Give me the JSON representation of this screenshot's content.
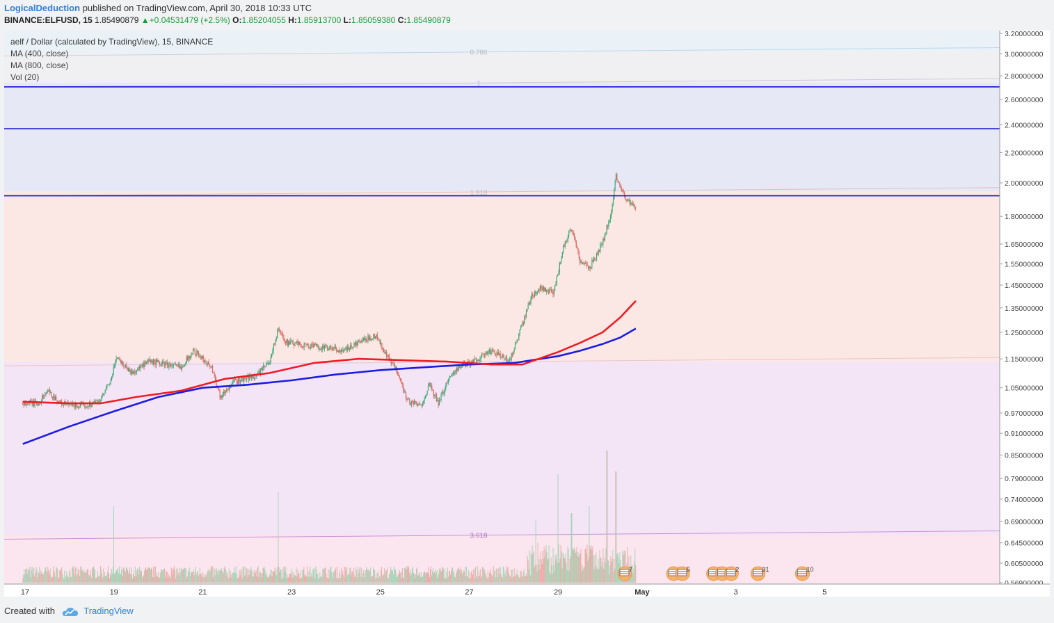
{
  "header": {
    "author": "LogicalDeduction",
    "published": "published on TradingView.com, April 30, 2018 10:33 UTC",
    "symbol": "BINANCE:ELFUSD, 15",
    "last": "1.85490879",
    "change": "+0.04531479 (+2.5%)",
    "o_label": "O:",
    "o": "1.85204055",
    "h_label": "H:",
    "h": "1.85913700",
    "l_label": "L:",
    "l": "1.85059380",
    "c_label": "C:",
    "c": "1.85490879"
  },
  "legend": {
    "title": "aelf / Dollar (calculated by TradingView), 15, BINANCE",
    "ma400": "MA (400, close)",
    "ma800": "MA (800, close)",
    "vol": "Vol (20)"
  },
  "footer": {
    "created": "Created with",
    "brand": "TradingView"
  },
  "colors": {
    "candle_up": "#3fa776",
    "candle_down": "#e0655e",
    "ma400": "#ee1c24",
    "ma800": "#1c1ce0",
    "hline": "#1212d8",
    "fib_top_fill": "#f0f0f2",
    "fib_blue_fill": "#e6e8f6",
    "fib_salmon_fill": "#fbe7e4",
    "fib_lavender_fill": "#f3e5f6",
    "fib_pink_fill": "#fbe5ee"
  },
  "chart_data": {
    "type": "candlestick",
    "y_scale": "log",
    "ylim": [
      0.55,
      3.3
    ],
    "x_tick_labels": [
      "17",
      "19",
      "21",
      "23",
      "25",
      "27",
      "29",
      "May",
      "3",
      "5"
    ],
    "y_tick_labels": [
      "3.20000000",
      "3.00000000",
      "2.80000000",
      "2.60000000",
      "2.40000000",
      "2.20000000",
      "2.00000000",
      "1.80000000",
      "1.65000000",
      "1.55000000",
      "1.45000000",
      "1.35000000",
      "1.25000000",
      "1.15000000",
      "1.05000000",
      "0.97000000",
      "0.91000000",
      "0.85000000",
      "0.79000000",
      "0.74000000",
      "0.69000000",
      "0.64500000",
      "0.60500000",
      "0.56900000"
    ],
    "y_ticks": [
      3.2,
      3.0,
      2.8,
      2.6,
      2.4,
      2.2,
      2.0,
      1.8,
      1.65,
      1.55,
      1.45,
      1.35,
      1.25,
      1.15,
      1.05,
      0.97,
      0.91,
      0.85,
      0.79,
      0.74,
      0.69,
      0.645,
      0.605,
      0.569
    ],
    "horizontal_lines": [
      {
        "value": 2.70437461,
        "label": "2.70437461"
      },
      {
        "value": 2.37083294,
        "label": "2.37083294"
      },
      {
        "value": 1.92062842,
        "label": "1.92062842"
      }
    ],
    "last_price": {
      "value": 1.85490879,
      "label": "1.85490879"
    },
    "fib_levels": [
      {
        "level": "0.786",
        "value": 3.02
      },
      {
        "level": "1",
        "value": 2.74
      },
      {
        "level": "1.618",
        "value": 1.945
      },
      {
        "level": "",
        "value": 1.14
      },
      {
        "level": "3.618",
        "value": 0.661
      }
    ],
    "price_path": [
      {
        "day": 16.95,
        "price": 1.0
      },
      {
        "day": 17.3,
        "price": 1.0
      },
      {
        "day": 17.5,
        "price": 1.04
      },
      {
        "day": 17.8,
        "price": 1.0
      },
      {
        "day": 18.3,
        "price": 0.99
      },
      {
        "day": 18.7,
        "price": 1.01
      },
      {
        "day": 18.95,
        "price": 1.08
      },
      {
        "day": 19.05,
        "price": 1.16
      },
      {
        "day": 19.4,
        "price": 1.1
      },
      {
        "day": 19.8,
        "price": 1.14
      },
      {
        "day": 20.2,
        "price": 1.13
      },
      {
        "day": 20.5,
        "price": 1.12
      },
      {
        "day": 20.8,
        "price": 1.18
      },
      {
        "day": 21.2,
        "price": 1.12
      },
      {
        "day": 21.4,
        "price": 1.02
      },
      {
        "day": 21.7,
        "price": 1.07
      },
      {
        "day": 22.2,
        "price": 1.09
      },
      {
        "day": 22.5,
        "price": 1.14
      },
      {
        "day": 22.7,
        "price": 1.26
      },
      {
        "day": 22.9,
        "price": 1.21
      },
      {
        "day": 23.3,
        "price": 1.2
      },
      {
        "day": 23.8,
        "price": 1.19
      },
      {
        "day": 24.2,
        "price": 1.18
      },
      {
        "day": 24.5,
        "price": 1.21
      },
      {
        "day": 24.9,
        "price": 1.24
      },
      {
        "day": 25.1,
        "price": 1.17
      },
      {
        "day": 25.4,
        "price": 1.1
      },
      {
        "day": 25.6,
        "price": 1.01
      },
      {
        "day": 25.9,
        "price": 0.99
      },
      {
        "day": 26.1,
        "price": 1.06
      },
      {
        "day": 26.3,
        "price": 1.0
      },
      {
        "day": 26.6,
        "price": 1.1
      },
      {
        "day": 26.9,
        "price": 1.13
      },
      {
        "day": 27.2,
        "price": 1.15
      },
      {
        "day": 27.5,
        "price": 1.18
      },
      {
        "day": 27.9,
        "price": 1.14
      },
      {
        "day": 28.2,
        "price": 1.28
      },
      {
        "day": 28.4,
        "price": 1.4
      },
      {
        "day": 28.6,
        "price": 1.44
      },
      {
        "day": 28.9,
        "price": 1.41
      },
      {
        "day": 29.1,
        "price": 1.62
      },
      {
        "day": 29.3,
        "price": 1.74
      },
      {
        "day": 29.5,
        "price": 1.56
      },
      {
        "day": 29.7,
        "price": 1.53
      },
      {
        "day": 29.9,
        "price": 1.61
      },
      {
        "day": 30.0,
        "price": 1.66
      },
      {
        "day": 30.2,
        "price": 1.82
      },
      {
        "day": 30.3,
        "price": 2.05
      },
      {
        "day": 30.5,
        "price": 1.92
      },
      {
        "day": 30.65,
        "price": 1.86
      },
      {
        "day": 30.75,
        "price": 1.855
      }
    ],
    "ma400": [
      {
        "day": 16.95,
        "value": 1.005
      },
      {
        "day": 18.0,
        "value": 1.0
      },
      {
        "day": 18.7,
        "value": 1.0
      },
      {
        "day": 19.5,
        "value": 1.02
      },
      {
        "day": 20.5,
        "value": 1.04
      },
      {
        "day": 21.5,
        "value": 1.08
      },
      {
        "day": 22.5,
        "value": 1.1
      },
      {
        "day": 23.5,
        "value": 1.135
      },
      {
        "day": 24.5,
        "value": 1.15
      },
      {
        "day": 25.5,
        "value": 1.145
      },
      {
        "day": 26.5,
        "value": 1.14
      },
      {
        "day": 27.5,
        "value": 1.13
      },
      {
        "day": 28.2,
        "value": 1.13
      },
      {
        "day": 29.0,
        "value": 1.175
      },
      {
        "day": 29.5,
        "value": 1.21
      },
      {
        "day": 30.0,
        "value": 1.25
      },
      {
        "day": 30.4,
        "value": 1.31
      },
      {
        "day": 30.75,
        "value": 1.38
      }
    ],
    "ma800": [
      {
        "day": 16.95,
        "value": 0.88
      },
      {
        "day": 18.0,
        "value": 0.93
      },
      {
        "day": 19.0,
        "value": 0.975
      },
      {
        "day": 20.0,
        "value": 1.02
      },
      {
        "day": 21.0,
        "value": 1.05
      },
      {
        "day": 22.0,
        "value": 1.06
      },
      {
        "day": 23.0,
        "value": 1.075
      },
      {
        "day": 24.0,
        "value": 1.095
      },
      {
        "day": 25.0,
        "value": 1.11
      },
      {
        "day": 26.0,
        "value": 1.12
      },
      {
        "day": 27.0,
        "value": 1.13
      },
      {
        "day": 28.0,
        "value": 1.135
      },
      {
        "day": 29.0,
        "value": 1.16
      },
      {
        "day": 29.5,
        "value": 1.18
      },
      {
        "day": 30.0,
        "value": 1.205
      },
      {
        "day": 30.4,
        "value": 1.23
      },
      {
        "day": 30.75,
        "value": 1.265
      }
    ],
    "volume_spikes": [
      {
        "day": 19.0,
        "rel": 0.55
      },
      {
        "day": 22.7,
        "rel": 0.65
      },
      {
        "day": 29.0,
        "rel": 0.78
      },
      {
        "day": 29.7,
        "rel": 0.55
      },
      {
        "day": 30.1,
        "rel": 0.95
      },
      {
        "day": 30.3,
        "rel": 0.8
      },
      {
        "day": 28.5,
        "rel": 0.45
      },
      {
        "day": 29.3,
        "rel": 0.5
      }
    ],
    "event_markers": [
      {
        "day": 30.5,
        "count": "7"
      },
      {
        "day": 31.6,
        "count": "2"
      },
      {
        "day": 31.8,
        "count": "5"
      },
      {
        "day": 32.5,
        "count": "5"
      },
      {
        "day": 32.7,
        "count": "2"
      },
      {
        "day": 32.9,
        "count": "2"
      },
      {
        "day": 33.5,
        "count": "31"
      },
      {
        "day": 34.5,
        "count": "10"
      }
    ]
  }
}
